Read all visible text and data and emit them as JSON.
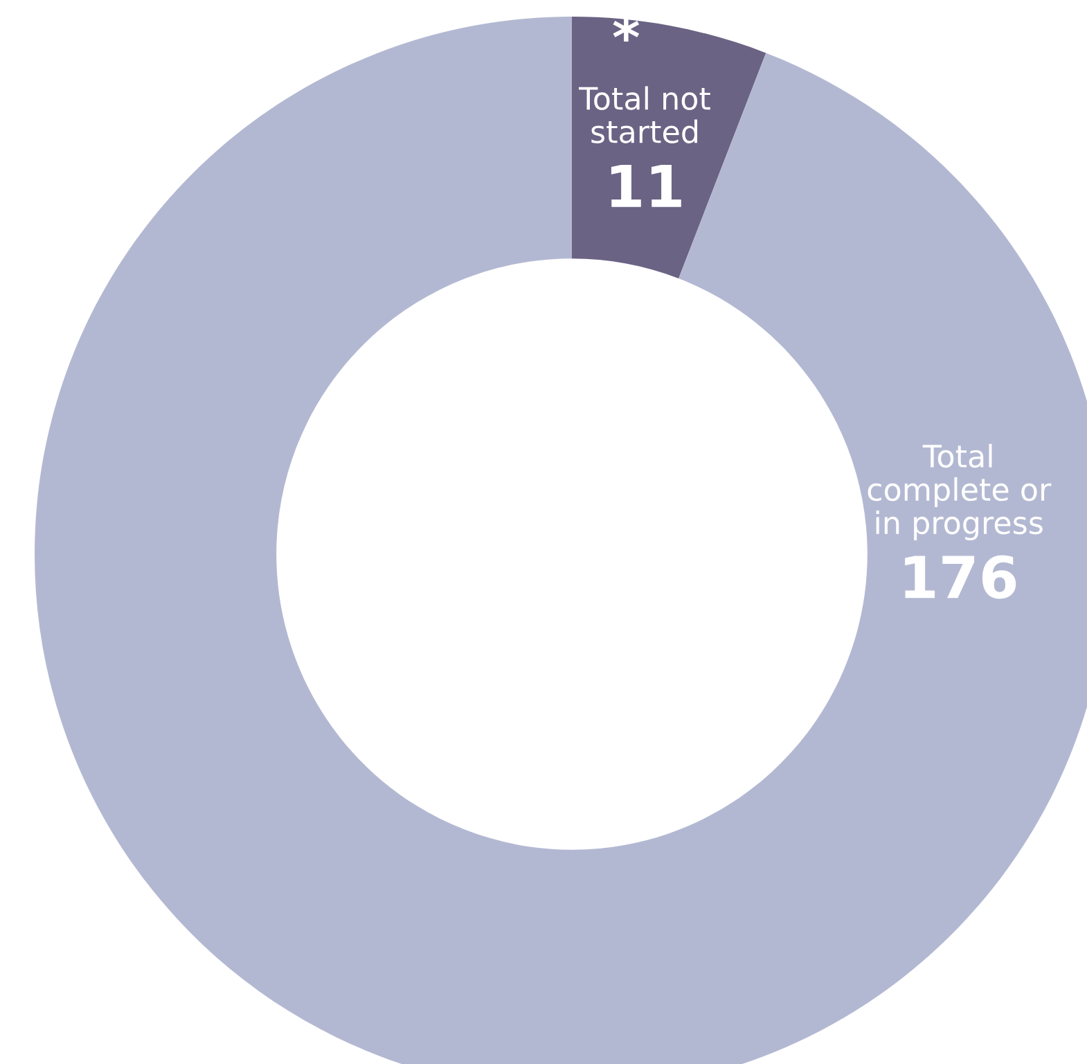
{
  "chart_data": {
    "type": "donut",
    "categories": [
      "Total not\nstarted",
      "Total\ncomplete or\nin progress"
    ],
    "values": [
      11,
      176
    ],
    "colors": [
      "#6b6384",
      "#b3b8d2"
    ],
    "data_labels": true,
    "annotations": [
      "*"
    ]
  }
}
